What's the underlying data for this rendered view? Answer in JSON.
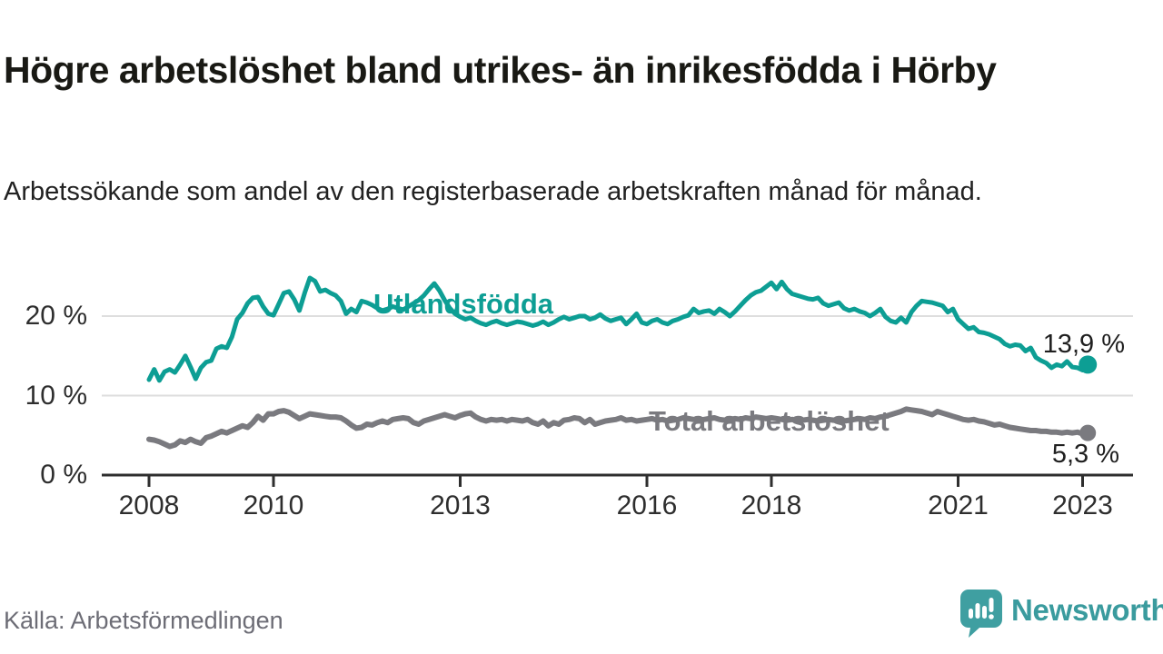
{
  "header": {
    "title": "Högre arbetslöshet bland utrikes- än inrikesfödda i Hörby",
    "subtitle": "Arbetssökande som andel av den registerbaserade arbetskraften månad för månad."
  },
  "footer": {
    "source": "Källa: Arbetsförmedlingen",
    "logo_text": "Newsworthy"
  },
  "colors": {
    "teal": "#0d9e94",
    "gray": "#7a7a7f",
    "axis": "#2e2e2e",
    "grid": "#dedede",
    "logo_teal": "#3f9fa1",
    "logo_word": "#3a9b9e"
  },
  "chart_data": {
    "type": "line",
    "title": "Högre arbetslöshet bland utrikes- än inrikesfödda i Hörby",
    "subtitle": "Arbetssökande som andel av den registerbaserade arbetskraften månad för månad.",
    "x_start": {
      "year": 2008,
      "month": 1
    },
    "x_end": {
      "year": 2023,
      "month": 2
    },
    "x_ticks": [
      2008,
      2010,
      2013,
      2016,
      2018,
      2021,
      2023
    ],
    "y_ticks": [
      {
        "value": 0,
        "label": "0 %"
      },
      {
        "value": 10,
        "label": "10 %"
      },
      {
        "value": 20,
        "label": "20 %"
      }
    ],
    "ylim": [
      0,
      26
    ],
    "grid": true,
    "legend_position": "inline-labels",
    "series": [
      {
        "name": "Utlandsfödda",
        "color": "#0d9e94",
        "end_label": "13,9 %",
        "end_value": 13.9,
        "values": [
          12.0,
          13.3,
          11.9,
          13.0,
          13.3,
          12.9,
          13.9,
          15.0,
          13.6,
          12.1,
          13.5,
          14.2,
          14.4,
          15.9,
          16.2,
          16.0,
          17.4,
          19.6,
          20.4,
          21.6,
          22.3,
          22.4,
          21.2,
          20.3,
          20.1,
          21.5,
          22.9,
          23.1,
          22.1,
          20.7,
          22.9,
          24.8,
          24.4,
          23.1,
          23.3,
          22.9,
          22.6,
          21.9,
          20.3,
          20.9,
          20.5,
          21.9,
          21.7,
          21.4,
          21.0,
          20.7,
          20.9,
          21.2,
          21.0,
          20.8,
          21.2,
          21.6,
          22.0,
          22.6,
          23.4,
          24.1,
          23.2,
          22.0,
          21.0,
          20.3,
          19.9,
          19.6,
          19.8,
          19.4,
          19.1,
          18.9,
          19.2,
          19.4,
          19.1,
          18.9,
          19.1,
          19.3,
          19.2,
          19.0,
          18.8,
          19.0,
          19.3,
          18.9,
          19.2,
          19.6,
          19.9,
          19.6,
          19.8,
          20.0,
          20.0,
          19.6,
          19.8,
          20.2,
          19.7,
          19.4,
          19.6,
          19.8,
          19.0,
          19.6,
          20.3,
          19.2,
          19.0,
          19.4,
          19.6,
          19.2,
          19.0,
          19.4,
          19.6,
          19.9,
          20.1,
          20.9,
          20.4,
          20.6,
          20.7,
          20.3,
          20.9,
          20.5,
          20.0,
          20.6,
          21.3,
          22.0,
          22.6,
          23.0,
          23.2,
          23.7,
          24.2,
          23.4,
          24.3,
          23.4,
          22.8,
          22.6,
          22.4,
          22.2,
          22.1,
          22.3,
          21.6,
          21.3,
          21.5,
          21.7,
          21.0,
          20.7,
          20.9,
          20.6,
          20.4,
          20.0,
          20.4,
          20.9,
          19.9,
          19.4,
          19.2,
          19.8,
          19.2,
          20.5,
          21.3,
          21.9,
          21.8,
          21.7,
          21.5,
          21.3,
          20.5,
          20.9,
          19.6,
          19.0,
          18.4,
          18.6,
          18.0,
          17.9,
          17.7,
          17.4,
          17.1,
          16.5,
          16.2,
          16.4,
          16.3,
          15.6,
          16.0,
          14.8,
          14.4,
          14.1,
          13.5,
          13.9,
          13.7,
          14.3,
          13.6,
          13.5,
          13.2,
          13.9
        ]
      },
      {
        "name": "Total arbetslöshet",
        "color": "#7a7a7f",
        "end_label": "5,3 %",
        "end_value": 5.3,
        "values": [
          4.5,
          4.4,
          4.2,
          3.9,
          3.6,
          3.8,
          4.3,
          4.1,
          4.5,
          4.2,
          4.0,
          4.7,
          4.9,
          5.2,
          5.5,
          5.3,
          5.6,
          5.9,
          6.2,
          6.0,
          6.6,
          7.4,
          6.9,
          7.7,
          7.7,
          8.0,
          8.1,
          7.9,
          7.5,
          7.1,
          7.4,
          7.7,
          7.6,
          7.5,
          7.4,
          7.3,
          7.3,
          7.2,
          6.8,
          6.3,
          5.9,
          6.0,
          6.4,
          6.3,
          6.6,
          6.8,
          6.6,
          7.0,
          7.1,
          7.2,
          7.1,
          6.6,
          6.4,
          6.8,
          7.0,
          7.2,
          7.4,
          7.6,
          7.4,
          7.2,
          7.5,
          7.7,
          7.8,
          7.3,
          7.0,
          6.8,
          7.0,
          6.9,
          7.0,
          6.8,
          7.0,
          6.9,
          6.8,
          7.0,
          6.6,
          6.4,
          6.8,
          6.2,
          6.6,
          6.4,
          6.9,
          7.0,
          7.2,
          7.1,
          6.6,
          7.0,
          6.4,
          6.6,
          6.8,
          6.9,
          7.0,
          7.2,
          6.9,
          7.0,
          6.8,
          6.9,
          7.0,
          7.1,
          6.9,
          7.0,
          6.8,
          6.9,
          7.0,
          7.2,
          7.1,
          7.0,
          6.9,
          7.0,
          7.1,
          7.2,
          7.0,
          6.9,
          7.0,
          7.1,
          7.0,
          7.2,
          7.1,
          7.3,
          7.2,
          7.1,
          7.2,
          7.1,
          7.0,
          6.9,
          7.0,
          6.8,
          6.9,
          7.0,
          6.9,
          6.8,
          6.9,
          7.0,
          6.9,
          7.0,
          6.8,
          6.9,
          7.0,
          7.1,
          7.0,
          7.2,
          7.1,
          7.3,
          7.4,
          7.6,
          7.8,
          8.0,
          8.3,
          8.2,
          8.1,
          8.0,
          7.8,
          7.6,
          8.0,
          7.8,
          7.6,
          7.4,
          7.2,
          7.0,
          6.9,
          7.0,
          6.8,
          6.7,
          6.5,
          6.3,
          6.4,
          6.2,
          6.0,
          5.9,
          5.8,
          5.7,
          5.6,
          5.6,
          5.5,
          5.5,
          5.4,
          5.4,
          5.3,
          5.4,
          5.3,
          5.4,
          5.2,
          5.3
        ]
      }
    ]
  }
}
